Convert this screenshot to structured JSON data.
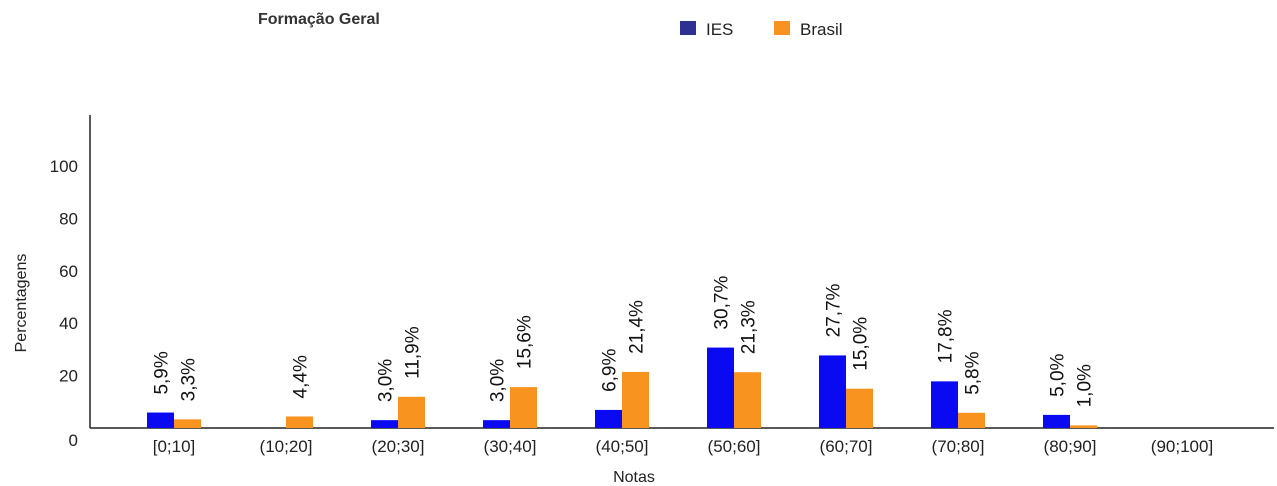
{
  "chart_data": {
    "type": "bar",
    "title": "Formação Geral",
    "xlabel": "Notas",
    "ylabel": "Percentagens",
    "ylim": [
      0,
      120
    ],
    "yticks": [
      0,
      20,
      40,
      60,
      80,
      100
    ],
    "grid": false,
    "legend_position": "top",
    "categories": [
      "[0;10]",
      "(10;20]",
      "(20;30]",
      "(30;40]",
      "(40;50]",
      "(50;60]",
      "(60;70]",
      "(70;80]",
      "(80;90]",
      "(90;100]"
    ],
    "series": [
      {
        "name": "IES",
        "color": "#0a0af2",
        "legend_color": "#2e3192",
        "values": [
          5.9,
          null,
          3.0,
          3.0,
          6.9,
          30.7,
          27.7,
          17.8,
          5.0,
          null
        ],
        "labels": [
          "5,9%",
          "",
          "3,0%",
          "3,0%",
          "6,9%",
          "30,7%",
          "27,7%",
          "17,8%",
          "5,0%",
          ""
        ]
      },
      {
        "name": "Brasil",
        "color": "#f7931e",
        "legend_color": "#f7931e",
        "values": [
          3.3,
          4.4,
          11.9,
          15.6,
          21.4,
          21.3,
          15.0,
          5.8,
          1.0,
          null
        ],
        "labels": [
          "3,3%",
          "4,4%",
          "11,9%",
          "15,6%",
          "21,4%",
          "21,3%",
          "15,0%",
          "5,8%",
          "1,0%",
          ""
        ]
      }
    ]
  }
}
